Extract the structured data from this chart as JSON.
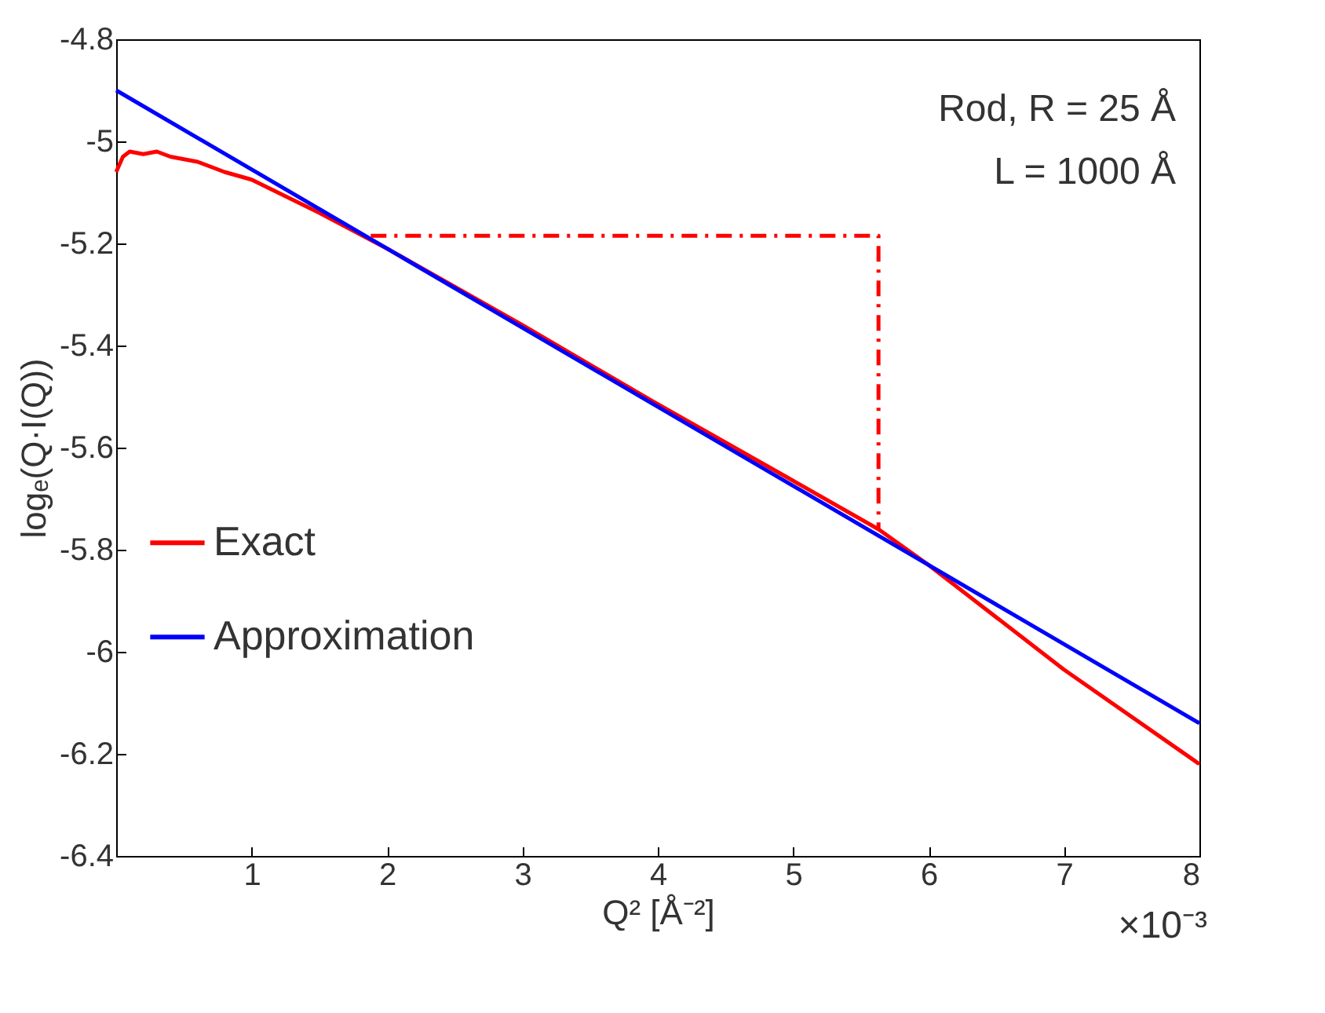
{
  "chart_data": {
    "type": "line",
    "xlabel": "Q² [Å⁻²]",
    "ylabel": "logₑ(Q·I(Q))",
    "annotations": [
      "Rod, R = 25 Å",
      "L = 1000 Å",
      "×10⁻³"
    ],
    "xlim": [
      0,
      8
    ],
    "xticks": [
      1,
      2,
      3,
      4,
      5,
      6,
      7,
      8
    ],
    "ylim": [
      -6.4,
      -4.8
    ],
    "yticks": [
      -6.4,
      -6.2,
      -6,
      -5.8,
      -5.6,
      -5.4,
      -5.2,
      -5,
      -4.8
    ],
    "legend": "bottom left",
    "grid": false,
    "marker": "none",
    "series": [
      {
        "name": "Exact",
        "color": "#ff0000",
        "x": [
          0,
          0.05,
          0.1,
          0.2,
          0.3,
          0.4,
          0.6,
          0.8,
          1,
          1.5,
          2,
          3,
          4,
          5,
          5.63,
          6,
          7,
          8
        ],
        "values": [
          -5.06,
          -5.03,
          -5.02,
          -5.025,
          -5.02,
          -5.03,
          -5.04,
          -5.06,
          -5.075,
          -5.14,
          -5.21,
          -5.36,
          -5.515,
          -5.665,
          -5.76,
          -5.83,
          -6.035,
          -6.22
        ]
      },
      {
        "name": "Approximation",
        "color": "#0000ff",
        "x": [
          0,
          8
        ],
        "values": [
          -4.9,
          -6.14
        ]
      },
      {
        "color": "#ff0000",
        "line_style": "dashed",
        "x": [
          1.88,
          5.63,
          5.63
        ],
        "values": [
          -5.185,
          -5.185,
          -5.76
        ]
      }
    ]
  }
}
